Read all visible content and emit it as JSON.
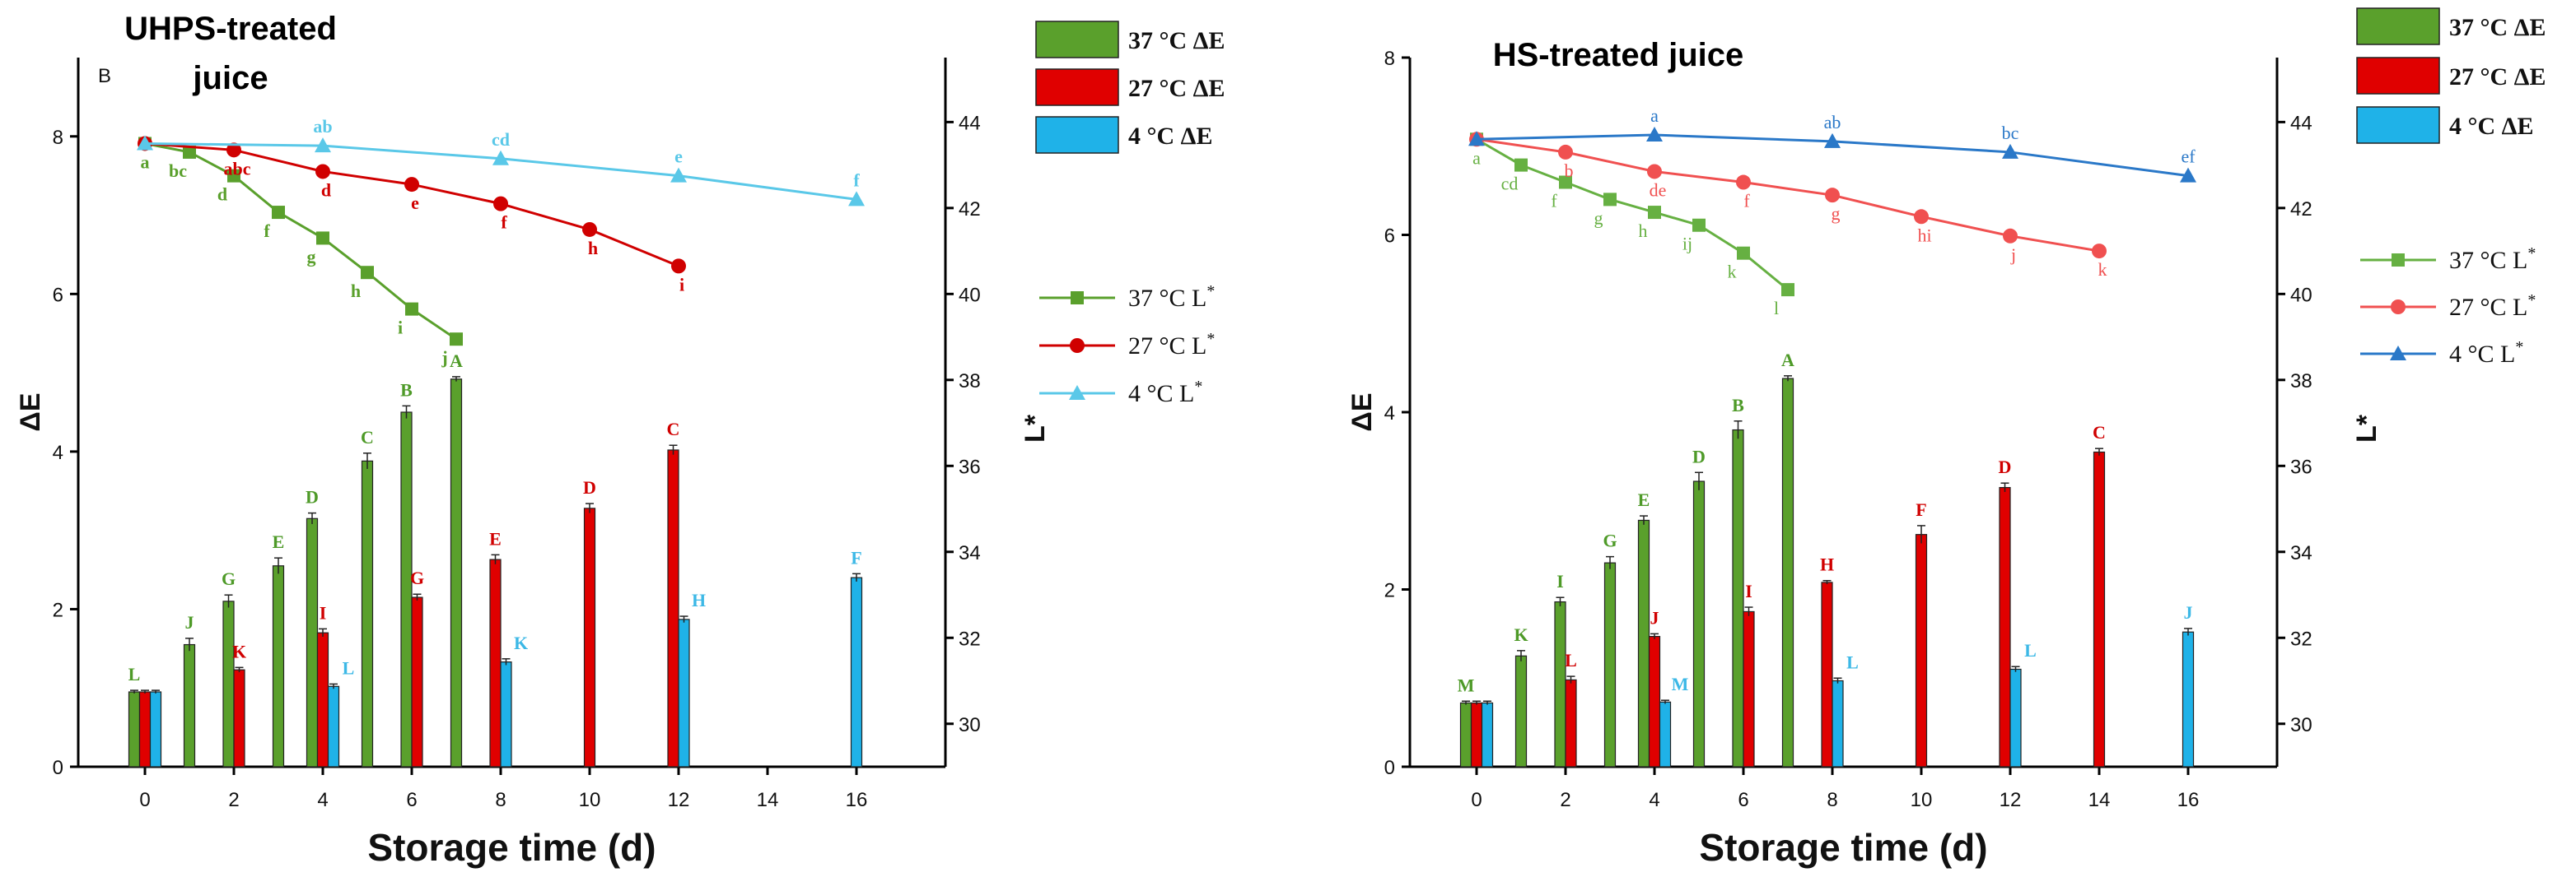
{
  "chart_data": [
    {
      "type": "bar",
      "panel_letter": "B",
      "title": "UHPS-treated juice",
      "xlabel": "Storage time (d)",
      "ylabel": "ΔE",
      "y2label": "L*",
      "ylim": [
        0,
        9
      ],
      "y2lim": [
        29,
        45.5
      ],
      "xlim": [
        -1.5,
        18
      ],
      "x_ticks": [
        0,
        2,
        4,
        6,
        8,
        10,
        12,
        14,
        16
      ],
      "y_ticks": [
        0,
        2,
        4,
        6,
        8
      ],
      "y2_ticks": [
        30,
        32,
        34,
        36,
        38,
        40,
        42,
        44
      ],
      "legend": {
        "bar_entries": [
          "37 °C ΔE",
          "27 °C ΔE",
          "4 °C  ΔE"
        ],
        "line_entries": [
          "37 °C L*",
          "27 °C L*",
          "4 °C L*"
        ]
      },
      "bar_series": [
        {
          "name": "37 °C ΔE",
          "color": "#5aa02c",
          "x": [
            0,
            1,
            2,
            3,
            4,
            5,
            6,
            7
          ],
          "values": [
            0.95,
            1.55,
            2.1,
            2.55,
            3.15,
            3.88,
            4.5,
            4.92
          ],
          "errors": [
            0.02,
            0.08,
            0.08,
            0.1,
            0.07,
            0.1,
            0.08,
            0.03
          ],
          "labels": [
            "L",
            "J",
            "G",
            "E",
            "D",
            "C",
            "B",
            "A"
          ]
        },
        {
          "name": "27 °C ΔE",
          "color": "#e00000",
          "x": [
            0,
            2,
            4,
            6,
            8,
            10,
            12
          ],
          "values": [
            0.95,
            1.23,
            1.7,
            2.15,
            2.63,
            3.28,
            4.02
          ],
          "errors": [
            0.02,
            0.03,
            0.05,
            0.04,
            0.06,
            0.06,
            0.06
          ],
          "labels": [
            "L",
            "K",
            "I",
            "G",
            "E",
            "D",
            "C"
          ]
        },
        {
          "name": "4 °C  ΔE",
          "color": "#1fb2e8",
          "x": [
            0,
            4,
            8,
            12,
            16
          ],
          "values": [
            0.95,
            1.02,
            1.33,
            1.87,
            2.4
          ],
          "errors": [
            0.02,
            0.03,
            0.04,
            0.04,
            0.05
          ],
          "labels": [
            "L",
            "L",
            "K",
            "H",
            "F"
          ]
        }
      ],
      "line_series": [
        {
          "name": "37 °C L*",
          "color": "#5aa02c",
          "marker": "square",
          "x": [
            0,
            1,
            2,
            3,
            4,
            5,
            6,
            7
          ],
          "values": [
            43.5,
            43.3,
            42.75,
            41.9,
            41.3,
            40.5,
            39.65,
            38.95
          ],
          "labels": [
            "a",
            "bc",
            "d",
            "f",
            "g",
            "h",
            "i",
            "j"
          ]
        },
        {
          "name": "27 °C L*",
          "color": "#d00000",
          "marker": "circle",
          "x": [
            0,
            2,
            4,
            6,
            8,
            10,
            12
          ],
          "values": [
            43.5,
            43.35,
            42.85,
            42.55,
            42.1,
            41.5,
            40.65
          ],
          "labels": [
            "a",
            "abc",
            "d",
            "e",
            "f",
            "h",
            "i"
          ]
        },
        {
          "name": "4 °C L*",
          "color": "#5ac8e8",
          "marker": "triangle",
          "x": [
            0,
            4,
            8,
            12,
            16
          ],
          "values": [
            43.5,
            43.45,
            43.15,
            42.75,
            42.2
          ],
          "labels": [
            "a",
            "ab",
            "cd",
            "e",
            "f"
          ]
        }
      ]
    },
    {
      "type": "bar",
      "title": "HS-treated juice",
      "xlabel": "Storage time (d)",
      "ylabel": "ΔE",
      "y2label": "L*",
      "ylim": [
        0,
        8
      ],
      "y2lim": [
        29,
        45.5
      ],
      "xlim": [
        -1.5,
        18
      ],
      "x_ticks": [
        0,
        2,
        4,
        6,
        8,
        10,
        12,
        14,
        16
      ],
      "y_ticks": [
        0,
        2,
        4,
        6,
        8
      ],
      "y2_ticks": [
        30,
        32,
        34,
        36,
        38,
        40,
        42,
        44
      ],
      "legend": {
        "bar_entries": [
          "37 °C ΔE",
          "27 °C ΔE",
          "4 °C  ΔE"
        ],
        "line_entries": [
          "37 °C L*",
          "27 °C L*",
          "4 °C   L*"
        ]
      },
      "bar_series": [
        {
          "name": "37 °C ΔE",
          "color": "#5aa02c",
          "x": [
            0,
            1,
            2,
            3,
            4,
            5,
            6,
            7
          ],
          "values": [
            0.72,
            1.25,
            1.86,
            2.3,
            2.78,
            3.22,
            3.8,
            4.38
          ],
          "errors": [
            0.02,
            0.06,
            0.05,
            0.07,
            0.05,
            0.1,
            0.1,
            0.03
          ],
          "labels": [
            "M",
            "K",
            "I",
            "G",
            "E",
            "D",
            "B",
            "A"
          ]
        },
        {
          "name": "27 °C ΔE",
          "color": "#e00000",
          "x": [
            0,
            2,
            4,
            6,
            8,
            10,
            12,
            14
          ],
          "values": [
            0.72,
            0.98,
            1.47,
            1.75,
            2.08,
            2.62,
            3.15,
            3.55
          ],
          "errors": [
            0.02,
            0.04,
            0.03,
            0.05,
            0.02,
            0.1,
            0.05,
            0.04
          ],
          "labels": [
            "M",
            "L",
            "J",
            "I",
            "H",
            "F",
            "D",
            "C"
          ]
        },
        {
          "name": "4 °C  ΔE",
          "color": "#1fb2e8",
          "x": [
            0,
            4,
            8,
            12,
            16
          ],
          "values": [
            0.72,
            0.73,
            0.97,
            1.1,
            1.52
          ],
          "errors": [
            0.02,
            0.02,
            0.03,
            0.03,
            0.04
          ],
          "labels": [
            "M",
            "M",
            "L",
            "L",
            "J"
          ]
        }
      ],
      "line_series": [
        {
          "name": "37 °C L*",
          "color": "#66b042",
          "marker": "square",
          "x": [
            0,
            1,
            2,
            3,
            4,
            5,
            6,
            7
          ],
          "values": [
            43.6,
            43.0,
            42.6,
            42.2,
            41.9,
            41.6,
            40.95,
            40.1
          ],
          "labels": [
            "a",
            "cd",
            "f",
            "g",
            "h",
            "ij",
            "k",
            "l"
          ]
        },
        {
          "name": "27 °C L*",
          "color": "#f05050",
          "marker": "circle",
          "x": [
            0,
            2,
            4,
            6,
            8,
            10,
            12,
            14
          ],
          "values": [
            43.6,
            43.3,
            42.85,
            42.6,
            42.3,
            41.8,
            41.35,
            41.0
          ],
          "labels": [
            "a",
            "b",
            "de",
            "f",
            "g",
            "hi",
            "j",
            "k"
          ]
        },
        {
          "name": "4 °C   L*",
          "color": "#2a78c8",
          "marker": "triangle",
          "x": [
            0,
            4,
            8,
            12,
            16
          ],
          "values": [
            43.6,
            43.7,
            43.55,
            43.3,
            42.75
          ],
          "labels": [
            "a",
            "a",
            "ab",
            "bc",
            "ef"
          ]
        }
      ]
    }
  ]
}
